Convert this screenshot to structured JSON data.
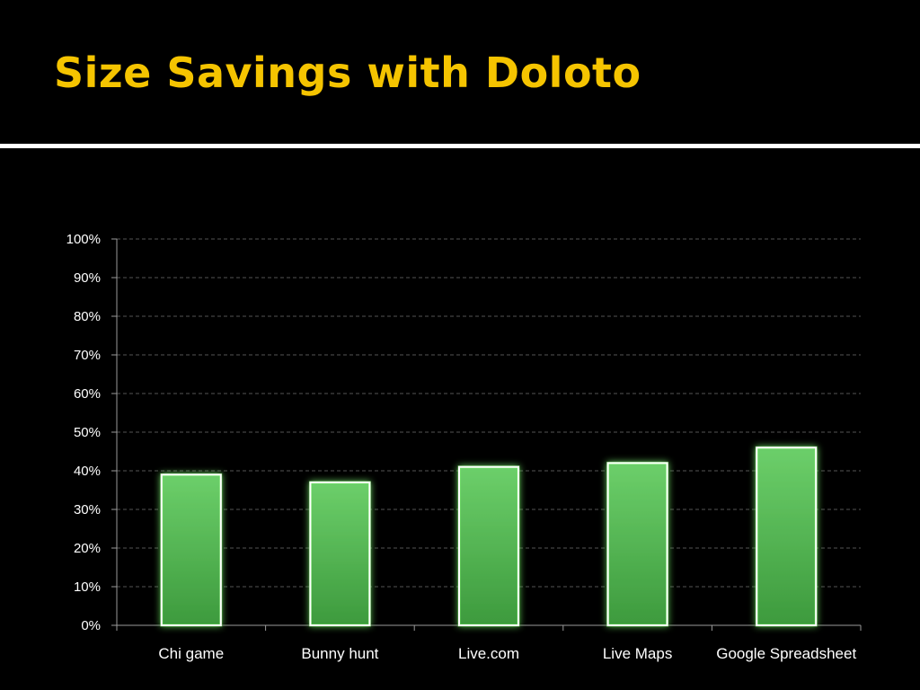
{
  "slide": {
    "title": "Size Savings with Doloto"
  },
  "colors": {
    "title": "#f5c400",
    "background": "#000000",
    "bar_top": "#6ccf6a",
    "bar_bottom": "#3d9a3d",
    "bar_glow": "#7dff6a",
    "gridline": "#555555"
  },
  "chart_data": {
    "type": "bar",
    "title": "",
    "xlabel": "",
    "ylabel": "",
    "categories": [
      "Chi game",
      "Bunny hunt",
      "Live.com",
      "Live Maps",
      "Google Spreadsheet"
    ],
    "values": [
      39,
      37,
      41,
      42,
      46
    ],
    "ylim": [
      0,
      100
    ],
    "ytick_step": 10,
    "ytick_labels": [
      "0%",
      "10%",
      "20%",
      "30%",
      "40%",
      "50%",
      "60%",
      "70%",
      "80%",
      "90%",
      "100%"
    ],
    "grid": true,
    "legend": "none"
  }
}
